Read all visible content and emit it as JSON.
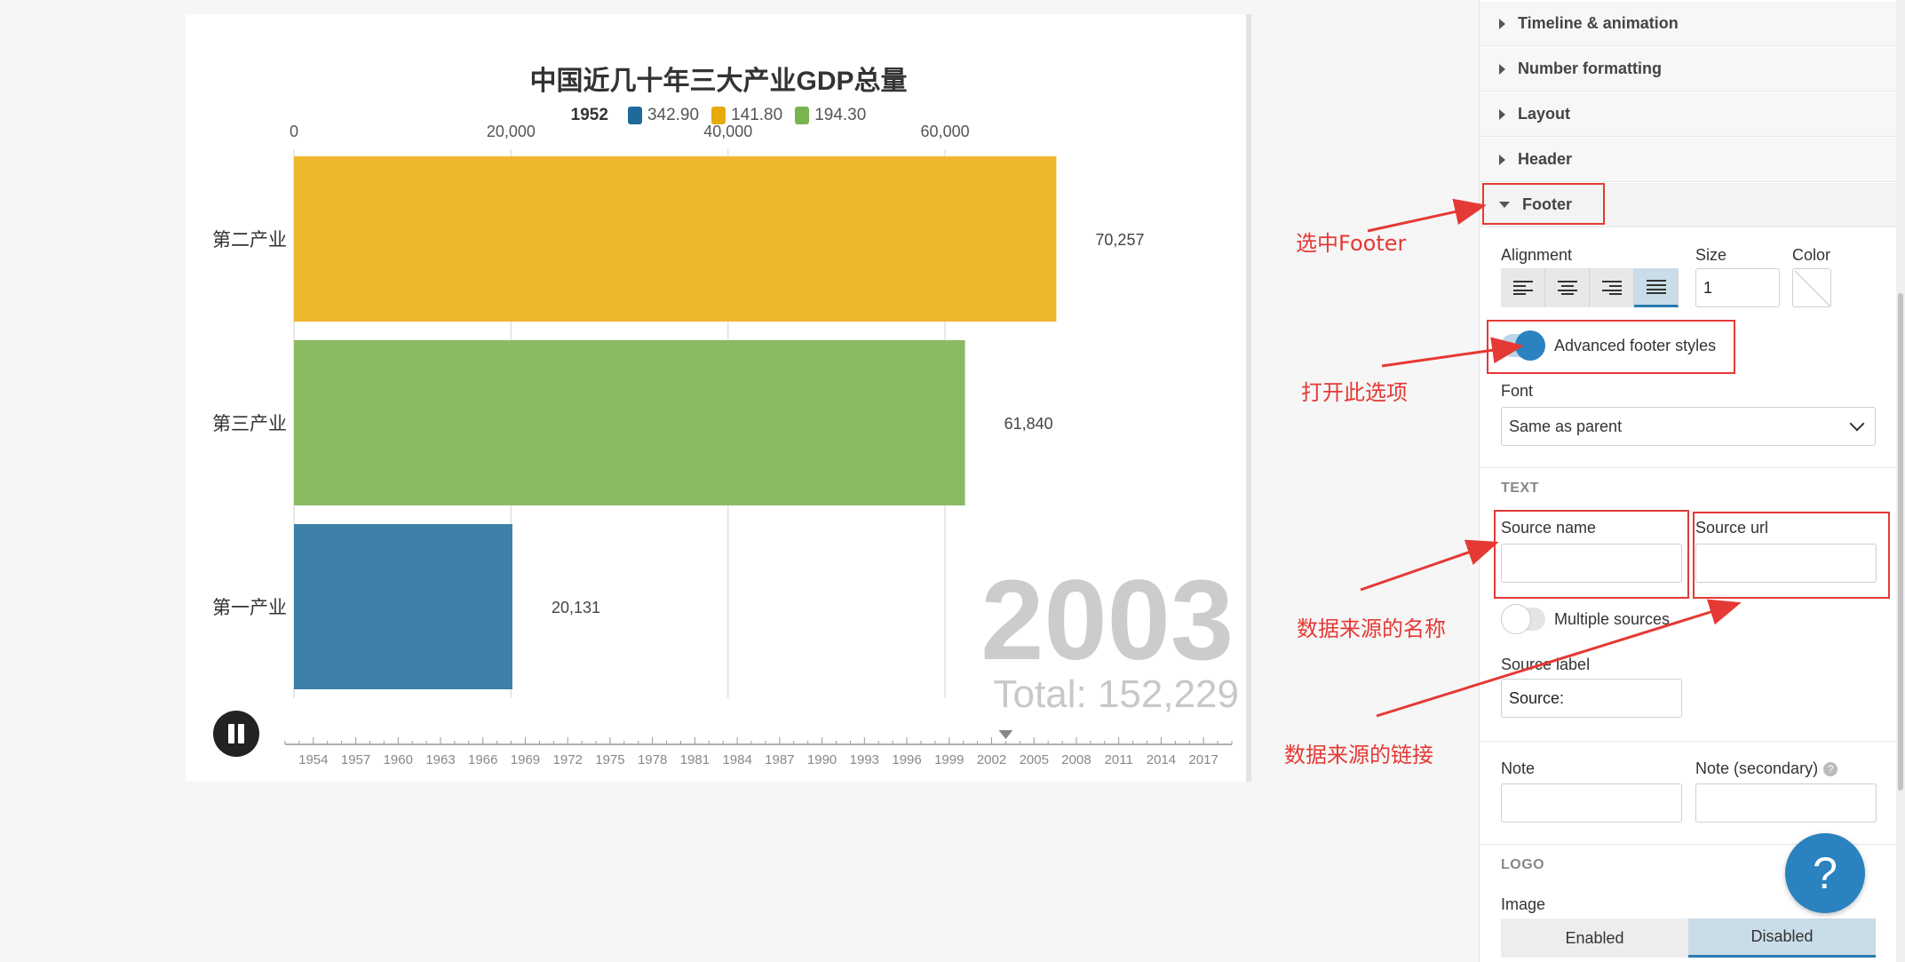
{
  "chart": {
    "title": "中国近几十年三大产业GDP总量",
    "legend": {
      "year": "1952",
      "items": [
        {
          "label": "342.90",
          "color": "#1f6a9a"
        },
        {
          "label": "141.80",
          "color": "#e8a90f"
        },
        {
          "label": "194.30",
          "color": "#79b54e"
        }
      ]
    },
    "big_year": "2003",
    "total_text": "Total: 152,229"
  },
  "chart_data": {
    "type": "bar",
    "orientation": "horizontal",
    "title": "中国近几十年三大产业GDP总量",
    "categories": [
      "第二产业",
      "第三产业",
      "第一产业"
    ],
    "values": [
      70257,
      61840,
      20131
    ],
    "value_labels": [
      "70,257",
      "61,840",
      "20,131"
    ],
    "colors": [
      "#eeb72e",
      "#8aba62",
      "#3d80a8"
    ],
    "x_ticks": [
      0,
      20000,
      40000,
      60000
    ],
    "x_tick_labels": [
      "0",
      "20,000",
      "40,000",
      "60,000"
    ],
    "xlim": [
      0,
      82500
    ],
    "grid": true,
    "timeline": {
      "start": 1952,
      "end": 2019,
      "labels": [
        "1954",
        "1957",
        "1960",
        "1963",
        "1966",
        "1969",
        "1972",
        "1975",
        "1978",
        "1981",
        "1984",
        "1987",
        "1990",
        "1993",
        "1996",
        "1999",
        "2002",
        "2005",
        "2008",
        "2011",
        "2014",
        "2017"
      ],
      "current": 2003
    }
  },
  "sidebar": {
    "sections": [
      {
        "label": "Timeline & animation"
      },
      {
        "label": "Number formatting"
      },
      {
        "label": "Layout"
      },
      {
        "label": "Header"
      },
      {
        "label": "Footer"
      }
    ],
    "alignment_label": "Alignment",
    "size_label": "Size",
    "size_value": "1",
    "color_label": "Color",
    "advanced_footer_label": "Advanced footer styles",
    "font_label": "Font",
    "font_value": "Same as parent",
    "text_heading": "TEXT",
    "source_name_label": "Source name",
    "source_url_label": "Source url",
    "multiple_sources_label": "Multiple sources",
    "source_label_label": "Source label",
    "source_label_value": "Source:",
    "note_label": "Note",
    "note_secondary_label": "Note (secondary)",
    "logo_heading": "LOGO",
    "image_label": "Image",
    "image_options": [
      "Enabled",
      "Disabled"
    ],
    "help": "?"
  },
  "annotations": {
    "select_footer": "选中Footer",
    "open_option": "打开此选项",
    "source_name": "数据来源的名称",
    "source_url": "数据来源的链接"
  },
  "colors": {
    "accent": "#2a83bf",
    "annotation_red": "#e53935"
  }
}
